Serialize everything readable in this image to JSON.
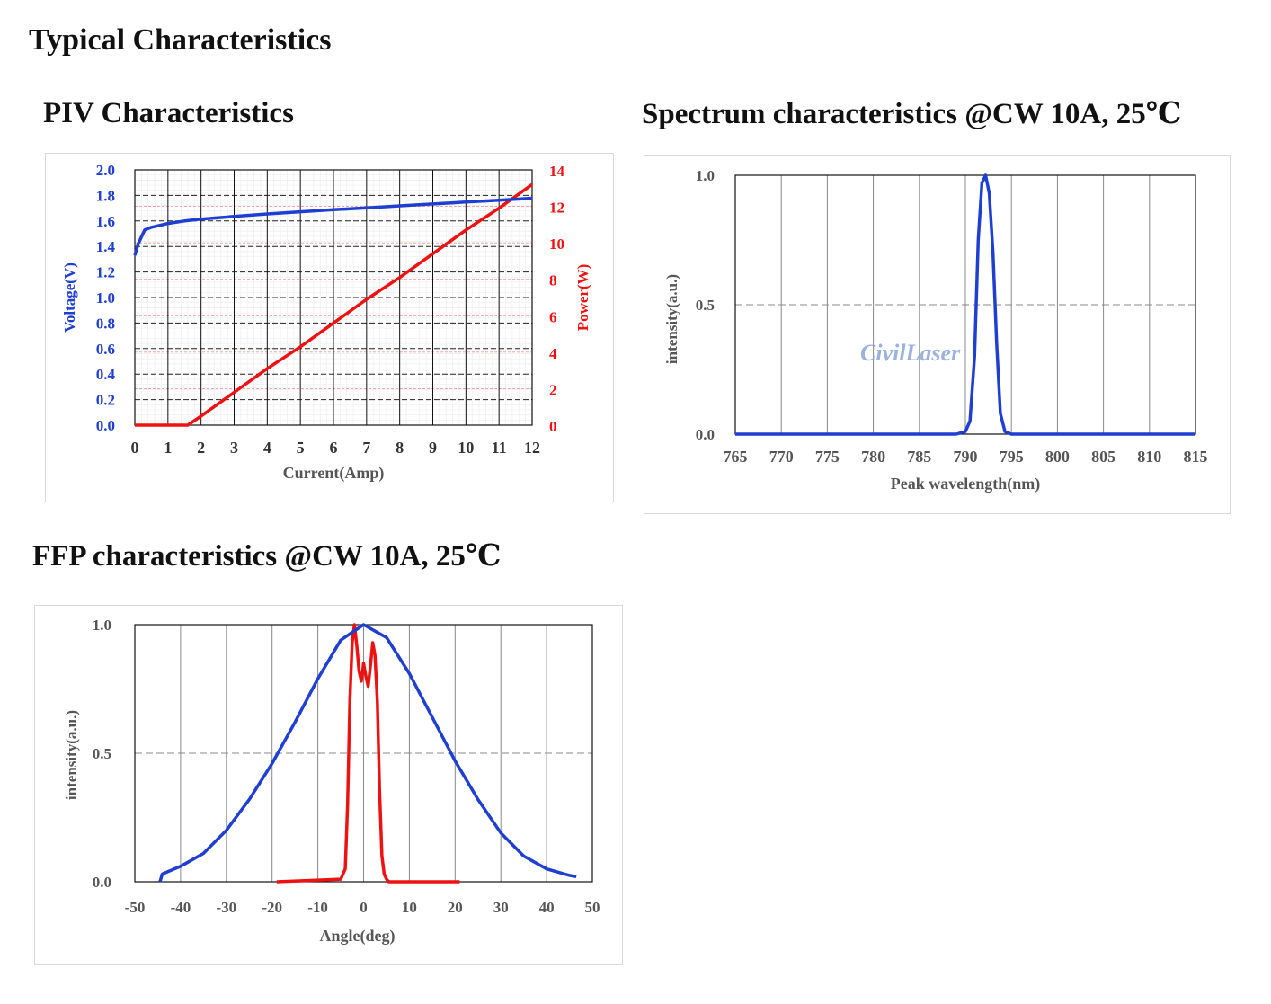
{
  "page_title": "Typical Characteristics",
  "colors": {
    "blue": "#1f3fd0",
    "red": "#ee1111",
    "watermark": "#8aa5d8"
  },
  "chart_data": [
    {
      "id": "piv",
      "type": "line",
      "title": "PIV Characteristics",
      "xlabel": "Current(Amp)",
      "ylabel": "Voltage(V)",
      "y2label": "Power(W)",
      "xlim": [
        0,
        12
      ],
      "ylim": [
        0,
        2
      ],
      "y2lim": [
        0,
        14
      ],
      "xticks": [
        "0",
        "1",
        "2",
        "3",
        "4",
        "5",
        "6",
        "7",
        "8",
        "9",
        "10",
        "11",
        "12"
      ],
      "yticks": [
        "0.0",
        "0.2",
        "0.4",
        "0.6",
        "0.8",
        "1.0",
        "1.2",
        "1.4",
        "1.6",
        "1.8",
        "2.0"
      ],
      "y2ticks": [
        "0",
        "2",
        "4",
        "6",
        "8",
        "10",
        "12",
        "14"
      ],
      "grid": true,
      "series": [
        {
          "axis": "left",
          "color": "#1f3fd0",
          "x": [
            0,
            0.1,
            0.3,
            0.5,
            1,
            1.5,
            2,
            3,
            4,
            5,
            6,
            7,
            8,
            9,
            10,
            11,
            12
          ],
          "y": [
            1.33,
            1.42,
            1.53,
            1.55,
            1.58,
            1.6,
            1.615,
            1.635,
            1.655,
            1.672,
            1.688,
            1.703,
            1.718,
            1.733,
            1.748,
            1.763,
            1.778
          ]
        },
        {
          "axis": "right",
          "color": "#ee1111",
          "x": [
            0,
            1.5,
            1.6,
            2,
            3,
            4,
            5,
            6,
            7,
            8,
            9,
            10,
            11,
            12
          ],
          "y": [
            0,
            0,
            0,
            0.5,
            1.8,
            3.1,
            4.3,
            5.6,
            6.9,
            8.1,
            9.4,
            10.7,
            11.9,
            13.2
          ]
        }
      ]
    },
    {
      "id": "spectrum",
      "type": "line",
      "title": "Spectrum characteristics @CW 10A, 25℃",
      "xlabel": "Peak wavelength(nm)",
      "ylabel": "intensity(a.u.)",
      "xlim": [
        765,
        815
      ],
      "ylim": [
        0,
        1
      ],
      "xticks": [
        "765",
        "770",
        "775",
        "780",
        "785",
        "790",
        "795",
        "800",
        "805",
        "810",
        "815"
      ],
      "yticks": [
        "0.0",
        "0.5",
        "1.0"
      ],
      "grid": true,
      "watermark": "CivilLaser",
      "series": [
        {
          "color": "#1f3fd0",
          "x": [
            765,
            789,
            790,
            790.5,
            791,
            791.4,
            791.8,
            792.2,
            792.6,
            793,
            793.4,
            793.8,
            794.3,
            795,
            815
          ],
          "y": [
            0,
            0,
            0.01,
            0.05,
            0.3,
            0.75,
            0.97,
            1.0,
            0.93,
            0.7,
            0.35,
            0.08,
            0.01,
            0,
            0
          ]
        }
      ]
    },
    {
      "id": "ffp",
      "type": "line",
      "title": "FFP characteristics @CW 10A, 25℃",
      "xlabel": "Angle(deg)",
      "ylabel": "intensity(a.u.)",
      "xlim": [
        -50,
        50
      ],
      "ylim": [
        0,
        1
      ],
      "xticks": [
        "-50",
        "-40",
        "-30",
        "-20",
        "-10",
        "0",
        "10",
        "20",
        "30",
        "40",
        "50"
      ],
      "yticks": [
        "0.0",
        "0.5",
        "1.0"
      ],
      "grid": true,
      "series": [
        {
          "color": "#1f3fd0",
          "x": [
            -44.5,
            -44,
            -40,
            -35,
            -30,
            -25,
            -20,
            -15,
            -10,
            -5,
            0,
            5,
            10,
            15,
            20,
            25,
            30,
            35,
            40,
            45,
            46.5
          ],
          "y": [
            0,
            0.03,
            0.06,
            0.11,
            0.2,
            0.32,
            0.46,
            0.62,
            0.79,
            0.94,
            1.0,
            0.95,
            0.81,
            0.64,
            0.47,
            0.32,
            0.19,
            0.1,
            0.05,
            0.025,
            0.02
          ]
        },
        {
          "color": "#ee1111",
          "x": [
            -19,
            -5,
            -4,
            -3.5,
            -3,
            -2.5,
            -2,
            -1.5,
            -1,
            -0.5,
            0,
            0.5,
            1,
            1.5,
            2,
            2.5,
            3,
            3.5,
            4,
            4.5,
            5,
            5.5,
            6,
            21
          ],
          "y": [
            0,
            0.01,
            0.05,
            0.3,
            0.7,
            0.93,
            1.0,
            0.92,
            0.82,
            0.78,
            0.85,
            0.8,
            0.76,
            0.84,
            0.93,
            0.88,
            0.7,
            0.35,
            0.1,
            0.03,
            0.01,
            0,
            0,
            0
          ]
        }
      ]
    }
  ]
}
